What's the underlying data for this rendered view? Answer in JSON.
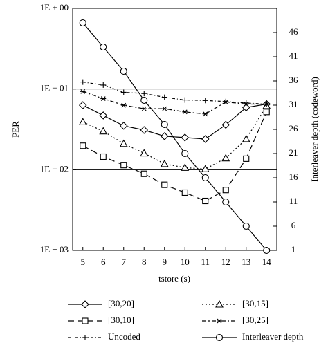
{
  "chart_data": {
    "type": "line",
    "xlabel": "tstore (s)",
    "ylabel": "PER",
    "y2label": "Interleaver depth (codeword)",
    "x": [
      5,
      6,
      7,
      8,
      9,
      10,
      11,
      12,
      13,
      14
    ],
    "xlim": [
      4.5,
      14.5
    ],
    "xticks": [
      5,
      6,
      7,
      8,
      9,
      10,
      11,
      12,
      13,
      14
    ],
    "ylog": true,
    "ylim": [
      0.001,
      1
    ],
    "yticks": [
      {
        "value": 0.001,
        "label": "1E − 03"
      },
      {
        "value": 0.01,
        "label": "1E − 02"
      },
      {
        "value": 0.1,
        "label": "1E − 01"
      },
      {
        "value": 1,
        "label": "1E + 00"
      }
    ],
    "y2lim": [
      1,
      51
    ],
    "y2ticks": [
      1,
      6,
      11,
      16,
      21,
      26,
      31,
      36,
      41,
      46
    ],
    "grid": true,
    "series": [
      {
        "name": "[30,20]",
        "color": "#000000",
        "marker": "diamond",
        "dash": "",
        "values": [
          0.063,
          0.047,
          0.035,
          0.031,
          0.026,
          0.025,
          0.024,
          0.036,
          0.059,
          0.065
        ]
      },
      {
        "name": "[30,15]",
        "color": "#000000",
        "marker": "triangle",
        "dash": "2,3",
        "values": [
          0.039,
          0.03,
          0.021,
          0.016,
          0.0118,
          0.0106,
          0.0102,
          0.0139,
          0.024,
          0.062
        ]
      },
      {
        "name": "[30,10]",
        "color": "#000000",
        "marker": "square",
        "dash": "9,5",
        "values": [
          0.0198,
          0.0145,
          0.0114,
          0.0089,
          0.0065,
          0.0052,
          0.0041,
          0.0056,
          0.0137,
          0.052
        ]
      },
      {
        "name": "[30,25]",
        "color": "#000000",
        "marker": "star",
        "dash": "6,3,2,3",
        "values": [
          0.093,
          0.076,
          0.063,
          0.057,
          0.057,
          0.052,
          0.049,
          0.069,
          0.065,
          0.065
        ]
      },
      {
        "name": "Uncoded",
        "color": "#000000",
        "marker": "plus",
        "dash": "4,3,1,3",
        "values": [
          0.122,
          0.112,
          0.091,
          0.088,
          0.079,
          0.073,
          0.072,
          0.07,
          0.067,
          0.065
        ]
      },
      {
        "name": "Interleaver depth",
        "color": "#000000",
        "marker": "circle",
        "dash": "",
        "axis": "y2",
        "values": [
          48,
          43,
          38,
          32,
          27,
          21,
          16,
          11,
          6,
          1
        ]
      }
    ]
  }
}
